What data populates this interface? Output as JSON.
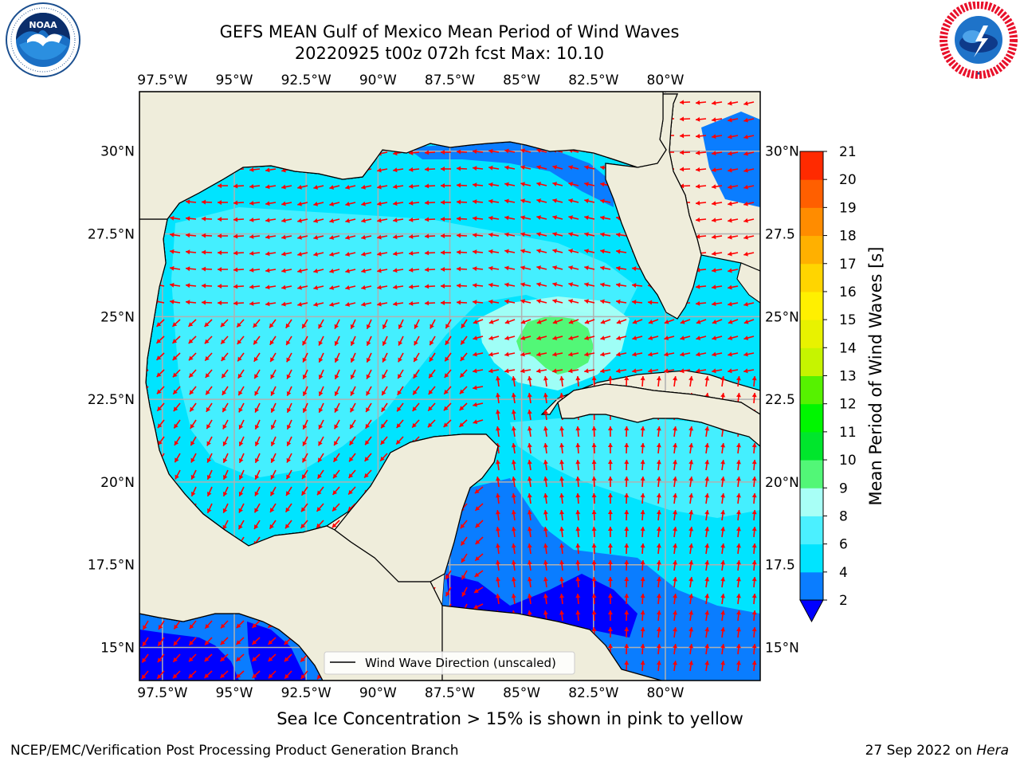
{
  "title_line1": "GEFS MEAN Gulf of Mexico Mean Period of Wind Waves",
  "title_line2": "20220925 t00z 072h fcst   Max: 10.10",
  "sea_ice_note": "Sea Ice Concentration > 15% is shown in pink to yellow",
  "footer_left": "NCEP/EMC/Verification Post Processing Product Generation Branch",
  "footer_date": "27 Sep 2022 on ",
  "footer_host": "Hera",
  "logos": {
    "left": "noaa-logo",
    "right": "nws-logo"
  },
  "colors": {
    "land": "#efeddb",
    "arrow": "#ff0000",
    "grid": "#b0b0b0"
  },
  "chart_data": {
    "type": "heatmap",
    "title": "GEFS MEAN Gulf of Mexico Mean Period of Wind Waves",
    "subtitle": "20220925 t00z 072h fcst   Max: 10.10",
    "max_value": 10.1,
    "xlim": [
      -98.3,
      -76.7
    ],
    "ylim": [
      14,
      31.8
    ],
    "grid": true,
    "x_ticks": [
      -97.5,
      -95,
      -92.5,
      -90,
      -87.5,
      -85,
      -82.5,
      -80
    ],
    "x_tick_labels": [
      "97.5°W",
      "95°W",
      "92.5°W",
      "90°W",
      "87.5°W",
      "85°W",
      "82.5°W",
      "80°W"
    ],
    "y_ticks": [
      15,
      17.5,
      20,
      22.5,
      25,
      27.5,
      30
    ],
    "y_tick_labels": [
      "15°N",
      "17.5°N",
      "20°N",
      "22.5°N",
      "25°N",
      "27.5°N",
      "30°N"
    ],
    "y_tick_labels_right": [
      "15°N",
      "17.5",
      "20°N",
      "22.5",
      "25°N",
      "27.5",
      "30°N"
    ],
    "legend": {
      "entry": "Wind Wave Direction (unscaled)",
      "placement": "lower center"
    },
    "colorbar": {
      "label": "Mean Period of Wind Waves [s]",
      "tick_labels": [
        "2",
        "4",
        "6",
        "8",
        "9",
        "10",
        "11",
        "12",
        "13",
        "14",
        "15",
        "16",
        "17",
        "18",
        "19",
        "20",
        "21"
      ],
      "levels": [
        2,
        4,
        6,
        8,
        9,
        10,
        11,
        12,
        13,
        14,
        15,
        16,
        17,
        18,
        19,
        20,
        21
      ],
      "colors": [
        "#0a7dff",
        "#00e4ff",
        "#4bf0ff",
        "#a8fff6",
        "#52f777",
        "#00e62c",
        "#00f600",
        "#56f200",
        "#c6f400",
        "#e8f200",
        "#fff000",
        "#ffd500",
        "#ffb000",
        "#ff8c00",
        "#ff5f00",
        "#ff2a00",
        "#ff0000"
      ],
      "extend_min_color": "#0000ff"
    }
  }
}
